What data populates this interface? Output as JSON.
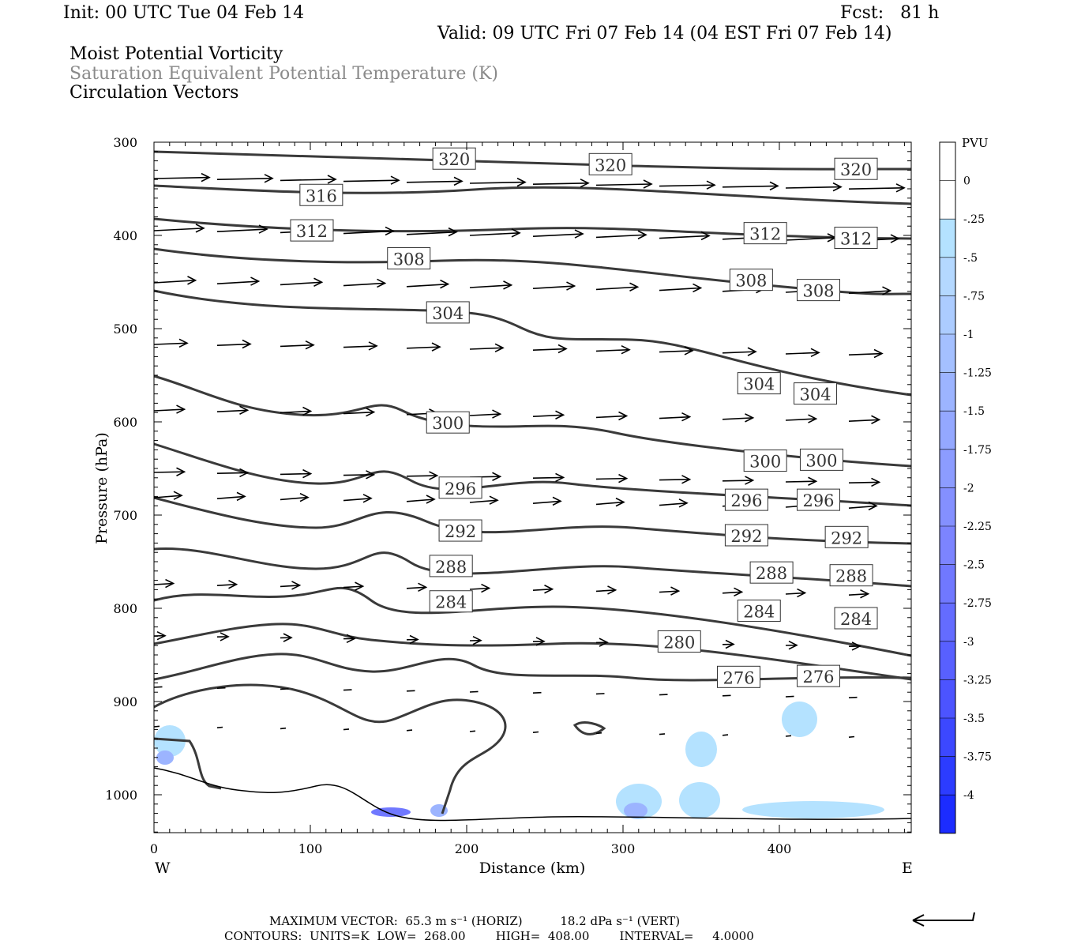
{
  "header": {
    "init": "Init: 00 UTC Tue 04 Feb 14",
    "fcst": "Fcst:   81 h",
    "valid": "Valid: 09 UTC Fri 07 Feb 14 (04 EST Fri 07 Feb 14)",
    "fields": [
      "Moist Potential Vorticity",
      "Saturation Equivalent Potential Temperature (K)",
      "Circulation Vectors"
    ]
  },
  "chart_data": {
    "type": "cross-section",
    "ylabel": "Pressure (hPa)",
    "xlabel": "Distance (km)",
    "y_ticks": [
      "300",
      "400",
      "500",
      "600",
      "700",
      "800",
      "900",
      "1000"
    ],
    "x_ticks": [
      "0",
      "100",
      "200",
      "300",
      "400"
    ],
    "xlim": [
      0,
      485
    ],
    "ylim": [
      1040,
      300
    ],
    "x_end_labels": {
      "left": "W",
      "right": "E"
    },
    "colorbar": {
      "unit": "PVU",
      "labels": [
        "0",
        "-.25",
        "-.5",
        "-.75",
        "-1",
        "-1.25",
        "-1.5",
        "-1.75",
        "-2",
        "-2.25",
        "-2.5",
        "-2.75",
        "-3",
        "-3.25",
        "-3.5",
        "-3.75",
        "-4"
      ],
      "colors": [
        "#ffffff",
        "#ffffff",
        "#b4e2ff",
        "#b4d8ff",
        "#acccff",
        "#a4c0ff",
        "#9cb4ff",
        "#94a8ff",
        "#8c9cff",
        "#8490ff",
        "#7c84ff",
        "#7078ff",
        "#646cff",
        "#5860ff",
        "#4c54ff",
        "#3c48ff",
        "#2c3cff",
        "#1c2cff"
      ]
    },
    "contour_labels": [
      {
        "text": "320",
        "x": 192,
        "p": 318
      },
      {
        "text": "320",
        "x": 292,
        "p": 324
      },
      {
        "text": "320",
        "x": 449,
        "p": 329
      },
      {
        "text": "316",
        "x": 107,
        "p": 357
      },
      {
        "text": "312",
        "x": 101,
        "p": 395
      },
      {
        "text": "312",
        "x": 391,
        "p": 398
      },
      {
        "text": "312",
        "x": 449,
        "p": 403
      },
      {
        "text": "308",
        "x": 163,
        "p": 425
      },
      {
        "text": "308",
        "x": 382,
        "p": 448
      },
      {
        "text": "308",
        "x": 425,
        "p": 459
      },
      {
        "text": "304",
        "x": 188,
        "p": 483
      },
      {
        "text": "304",
        "x": 387,
        "p": 559
      },
      {
        "text": "304",
        "x": 423,
        "p": 570
      },
      {
        "text": "300",
        "x": 188,
        "p": 601
      },
      {
        "text": "300",
        "x": 391,
        "p": 642
      },
      {
        "text": "300",
        "x": 427,
        "p": 641
      },
      {
        "text": "296",
        "x": 196,
        "p": 671
      },
      {
        "text": "296",
        "x": 379,
        "p": 684
      },
      {
        "text": "296",
        "x": 425,
        "p": 684
      },
      {
        "text": "292",
        "x": 196,
        "p": 717
      },
      {
        "text": "292",
        "x": 379,
        "p": 722
      },
      {
        "text": "292",
        "x": 443,
        "p": 724
      },
      {
        "text": "288",
        "x": 190,
        "p": 755
      },
      {
        "text": "288",
        "x": 395,
        "p": 762
      },
      {
        "text": "288",
        "x": 446,
        "p": 765
      },
      {
        "text": "284",
        "x": 190,
        "p": 793
      },
      {
        "text": "284",
        "x": 387,
        "p": 803
      },
      {
        "text": "284",
        "x": 449,
        "p": 811
      },
      {
        "text": "280",
        "x": 336,
        "p": 836
      },
      {
        "text": "276",
        "x": 374,
        "p": 874
      },
      {
        "text": "276",
        "x": 425,
        "p": 873
      }
    ]
  },
  "footer": {
    "vector_line": "MAXIMUM VECTOR:  65.3 m s⁻¹ (HORIZ)          18.2 dPa s⁻¹ (VERT)",
    "contour_line": "CONTOURS:  UNITS=K  LOW=  268.00        HIGH=  408.00        INTERVAL=     4.0000"
  }
}
